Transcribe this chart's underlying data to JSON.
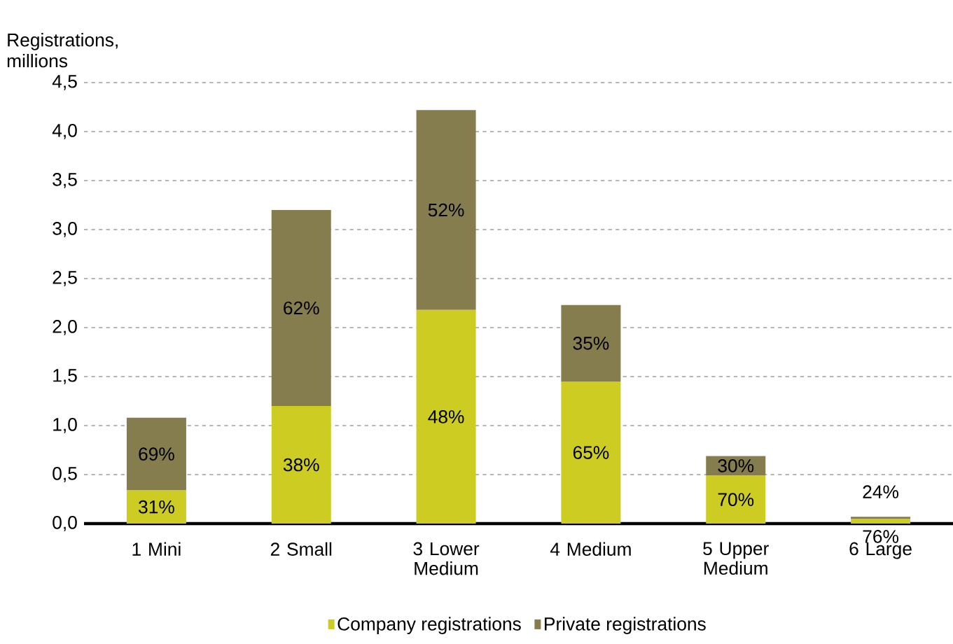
{
  "chart_data": {
    "type": "bar",
    "stacked": true,
    "ylabel": "Registrations, millions",
    "categories": [
      "1 Mini",
      "2 Small",
      "3 Lower Medium",
      "4 Medium",
      "5 Upper Medium",
      "6 Large"
    ],
    "series": [
      {
        "name": "Company registrations",
        "color": "#cccc22",
        "values": [
          0.34,
          1.2,
          2.18,
          1.45,
          0.49,
          0.05
        ]
      },
      {
        "name": "Private registrations",
        "color": "#857d4e",
        "values": [
          0.74,
          2.0,
          2.04,
          0.78,
          0.2,
          0.02
        ]
      }
    ],
    "annotations": [
      "31%",
      "69%",
      "38%",
      "62%",
      "48%",
      "52%",
      "65%",
      "35%",
      "70%",
      "30%",
      "76%",
      "24%"
    ],
    "ylim": [
      0,
      4.5
    ],
    "yticks": [
      {
        "value": 0,
        "label": "0,0"
      },
      {
        "value": 0.5,
        "label": "0,5"
      },
      {
        "value": 1,
        "label": "1,0"
      },
      {
        "value": 1.5,
        "label": "1,5"
      },
      {
        "value": 2,
        "label": "2,0"
      },
      {
        "value": 2.5,
        "label": "2,5"
      },
      {
        "value": 3,
        "label": "3,0"
      },
      {
        "value": 3.5,
        "label": "3,5"
      },
      {
        "value": 4,
        "label": "4,0"
      },
      {
        "value": 4.5,
        "label": "4,5"
      }
    ],
    "grid": "y",
    "legend": "bottom"
  }
}
